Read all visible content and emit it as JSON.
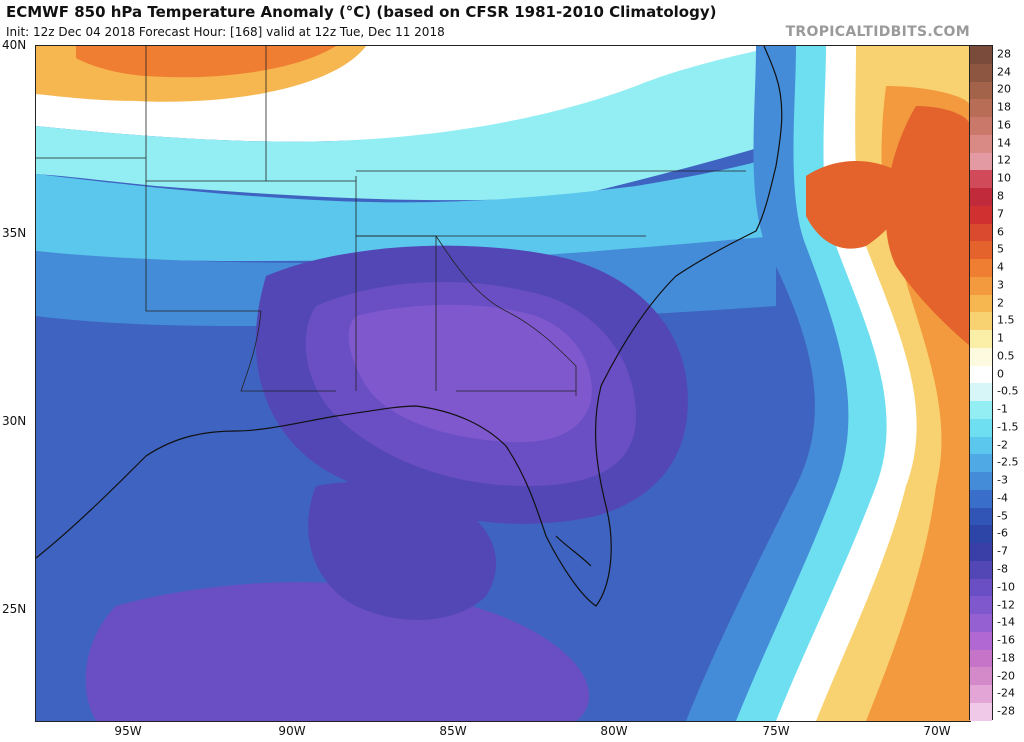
{
  "header": {
    "title": "ECMWF 850 hPa Temperature Anomaly (°C) (based on CFSR 1981-2010 Climatology)",
    "subtitle": "Init: 12z Dec 04 2018   Forecast Hour: [168]   valid at 12z Tue, Dec 11 2018",
    "brand": "TROPICALTIDBITS.COM"
  },
  "axes": {
    "lat_labels": [
      "40N",
      "35N",
      "30N",
      "25N"
    ],
    "lon_labels": [
      "95W",
      "90W",
      "85W",
      "80W",
      "75W",
      "70W"
    ]
  },
  "colorbar": {
    "labels": [
      "28",
      "24",
      "20",
      "18",
      "16",
      "14",
      "12",
      "10",
      "8",
      "7",
      "6",
      "5",
      "4",
      "3",
      "2",
      "1.5",
      "1",
      "0.5",
      "0",
      "-0.5",
      "-1",
      "-1.5",
      "-2",
      "-2.5",
      "-3",
      "-4",
      "-5",
      "-6",
      "-7",
      "-8",
      "-10",
      "-12",
      "-14",
      "-16",
      "-18",
      "-20",
      "-24",
      "-28"
    ],
    "colors": [
      "#7a4a3a",
      "#8c5640",
      "#a3634a",
      "#b86d56",
      "#c9786a",
      "#d98a84",
      "#e49aa3",
      "#d04a5a",
      "#c02a3a",
      "#d0302f",
      "#d94a2e",
      "#e4632c",
      "#ef7e32",
      "#f39a3e",
      "#f6b750",
      "#f8d270",
      "#fbeea6",
      "#fdfae0",
      "#ffffff",
      "#d6f6f8",
      "#93eef4",
      "#6edff0",
      "#5bc7ec",
      "#4fa9e4",
      "#458cd8",
      "#3a6ecb",
      "#3155b6",
      "#2c45a6",
      "#3a3fa8",
      "#5347b6",
      "#6a4fc4",
      "#7f58cd",
      "#9460d2",
      "#b168d2",
      "#c674c8",
      "#d489c9",
      "#e2a5d6",
      "#f0c8e8"
    ]
  }
}
